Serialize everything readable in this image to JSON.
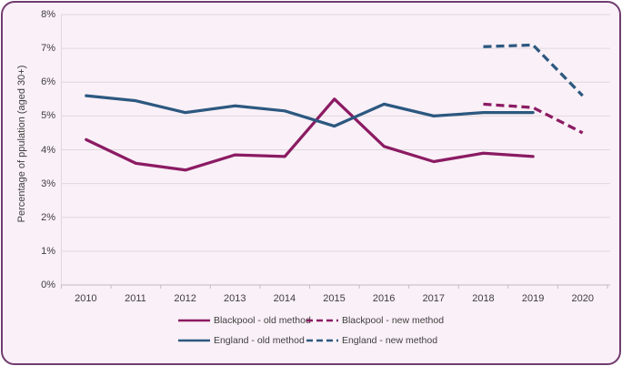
{
  "window": {
    "card_border_color": "#713C6F",
    "card_background": "#FAF0F7",
    "gridline_color": "#DED9DC",
    "axis_color": "#C2BDC0",
    "text_color": "#3E3E3E"
  },
  "chart": {
    "y_axis_title": "Percentage of ppulation (aged 30+)",
    "y_tick_labels": [
      "8%",
      "7%",
      "6%",
      "5%",
      "4%",
      "3%",
      "2%",
      "1%",
      "0%"
    ],
    "x_tick_labels": [
      "2010",
      "2011",
      "2012",
      "2013",
      "2014",
      "2015",
      "2016",
      "2017",
      "2018",
      "2019",
      "2020"
    ]
  },
  "chart_data": {
    "type": "line",
    "categories": [
      "2010",
      "2011",
      "2012",
      "2013",
      "2014",
      "2015",
      "2016",
      "2017",
      "2018",
      "2019",
      "2020"
    ],
    "series": [
      {
        "name": "Blackpool - old method",
        "color": "#8B1B63",
        "dash": "solid",
        "values": [
          4.3,
          3.6,
          3.4,
          3.85,
          3.8,
          5.5,
          4.1,
          3.65,
          3.9,
          3.8,
          null
        ]
      },
      {
        "name": "Blackpool - new method",
        "color": "#8B1B63",
        "dash": "dashed",
        "values": [
          null,
          null,
          null,
          null,
          null,
          null,
          null,
          null,
          5.35,
          5.25,
          4.5
        ]
      },
      {
        "name": "England - old method",
        "color": "#2C5880",
        "dash": "solid",
        "values": [
          5.6,
          5.45,
          5.1,
          5.3,
          5.15,
          4.7,
          5.35,
          5.0,
          5.1,
          5.1,
          null
        ]
      },
      {
        "name": "England - new method",
        "color": "#2C5880",
        "dash": "dashed",
        "values": [
          null,
          null,
          null,
          null,
          null,
          null,
          null,
          null,
          7.05,
          7.1,
          5.6
        ]
      }
    ],
    "title": "",
    "xlabel": "",
    "ylabel": "Percentage of ppulation (aged 30+)",
    "ylim": [
      0,
      8
    ],
    "y_tick_step": 1,
    "grid": true,
    "legend_position": "bottom"
  }
}
